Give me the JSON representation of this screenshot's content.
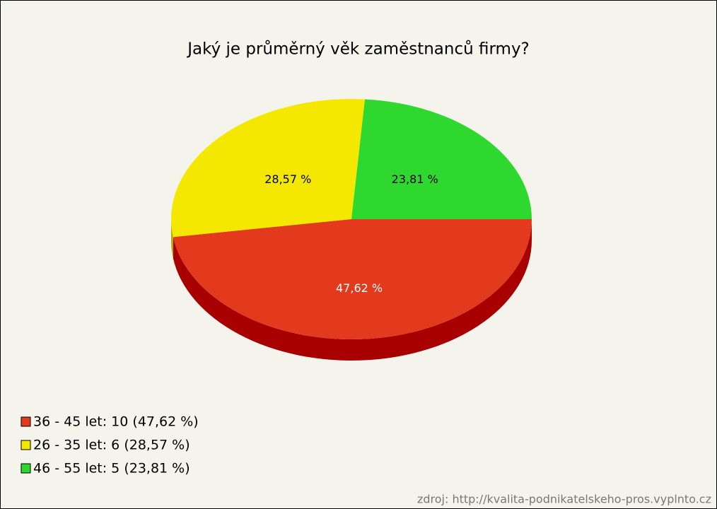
{
  "chart_data": {
    "type": "pie",
    "title": "Jaký je průměrný věk zaměstnanců firmy?",
    "categories": [
      "36 - 45 let: 10 (47,62 %)",
      "26 - 35 let: 6 (28,57 %)",
      "46 - 55 let: 5 (23,81 %)"
    ],
    "values": [
      47.62,
      28.57,
      23.81
    ],
    "value_labels": [
      "47,62 %",
      "28,57 %",
      "23,81 %"
    ],
    "colors": [
      "#e33a1e",
      "#f4e800",
      "#2fd82f"
    ],
    "side_colors": [
      "#a80000",
      "#b5a800",
      "#179417"
    ],
    "source": "zdroj: http://kvalita-podnikatelskeho-pros.vyplnto.cz"
  }
}
